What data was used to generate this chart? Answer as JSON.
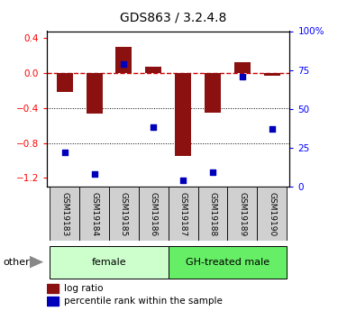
{
  "title": "GDS863 / 3.2.4.8",
  "samples": [
    "GSM19183",
    "GSM19184",
    "GSM19185",
    "GSM19186",
    "GSM19187",
    "GSM19188",
    "GSM19189",
    "GSM19190"
  ],
  "log_ratio": [
    -0.22,
    -0.46,
    0.3,
    0.07,
    -0.95,
    -0.45,
    0.12,
    -0.03
  ],
  "percentile_rank": [
    22,
    8,
    79,
    38,
    4,
    9,
    71,
    37
  ],
  "left_ylim": [
    -1.3,
    0.48
  ],
  "right_ylim": [
    0,
    100
  ],
  "left_yticks": [
    -1.2,
    -0.8,
    -0.4,
    0,
    0.4
  ],
  "right_yticks": [
    0,
    25,
    50,
    75,
    100
  ],
  "right_yticklabels": [
    "0",
    "25",
    "50",
    "75",
    "100%"
  ],
  "bar_color": "#8B1010",
  "dot_color": "#0000BB",
  "dashed_line_color": "#CC0000",
  "group_labels": [
    "female",
    "GH-treated male"
  ],
  "group_splits": [
    4
  ],
  "group_colors": [
    "#CCFFCC",
    "#66EE66"
  ],
  "bar_width": 0.55,
  "dotted_lines": [
    -0.4,
    -0.8
  ],
  "other_label": "other",
  "legend_bar_label": "log ratio",
  "legend_dot_label": "percentile rank within the sample"
}
